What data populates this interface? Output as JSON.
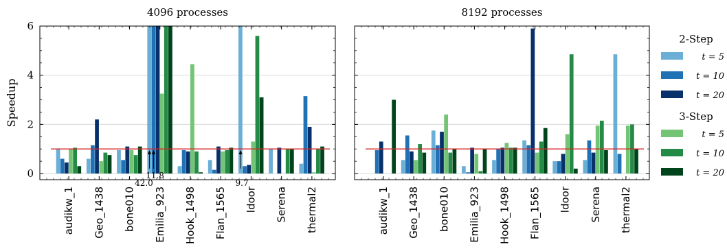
{
  "chart_data": {
    "type": "bar",
    "ylabel": "Speedup",
    "ylim": [
      -0.25,
      6
    ],
    "yticks": [
      0,
      2,
      4,
      6
    ],
    "grid": true,
    "baseline": 1.0,
    "baseline_color": "#d62728",
    "categories": [
      "audikw_1",
      "Geo_1438",
      "bone010",
      "Emilia_923",
      "Hook_1498",
      "Flan_1565",
      "ldoor",
      "Serena",
      "thermal2"
    ],
    "legend": {
      "placement": "right",
      "groups": [
        {
          "title": "2-Step",
          "entries": [
            {
              "label": "t = 5",
              "color": "#6baed6"
            },
            {
              "label": "t = 10",
              "color": "#2171b5"
            },
            {
              "label": "t = 20",
              "color": "#08306b"
            }
          ]
        },
        {
          "title": "3-Step",
          "entries": [
            {
              "label": "t = 5",
              "color": "#74c476"
            },
            {
              "label": "t = 10",
              "color": "#238b45"
            },
            {
              "label": "t = 20",
              "color": "#00441b"
            }
          ]
        }
      ]
    },
    "panels": [
      {
        "title": "4096 processes",
        "series": [
          {
            "name": "2-Step t = 5",
            "values": [
              1.0,
              0.6,
              0.95,
              6.0,
              0.3,
              0.55,
              6.0,
              1.0,
              0.4
            ]
          },
          {
            "name": "2-Step t = 10",
            "values": [
              0.6,
              1.15,
              0.55,
              6.0,
              0.95,
              0.15,
              0.3,
              0.0,
              3.15
            ]
          },
          {
            "name": "2-Step t = 20",
            "values": [
              0.45,
              2.2,
              1.1,
              6.0,
              0.9,
              1.1,
              0.35,
              1.05,
              1.9
            ]
          },
          {
            "name": "3-Step t = 5",
            "values": [
              1.0,
              0.5,
              0.95,
              3.25,
              4.45,
              0.9,
              1.3,
              0.0,
              0.05
            ]
          },
          {
            "name": "3-Step t = 10",
            "values": [
              1.05,
              0.85,
              0.75,
              6.0,
              0.9,
              0.95,
              5.6,
              1.0,
              1.0
            ]
          },
          {
            "name": "3-Step t = 20",
            "values": [
              0.3,
              0.75,
              1.1,
              6.0,
              0.05,
              1.05,
              3.1,
              1.0,
              1.1
            ]
          }
        ],
        "annotations": [
          {
            "text": "42.0",
            "category": "Emilia_923",
            "series": "2-Step t = 5"
          },
          {
            "text": "11.8",
            "category": "Emilia_923",
            "series": "2-Step t = 10"
          },
          {
            "text": "9.7",
            "category": "ldoor",
            "series": "2-Step t = 5"
          }
        ]
      },
      {
        "title": "8192 processes",
        "series": [
          {
            "name": "2-Step t = 5",
            "values": [
              0.0,
              0.55,
              1.75,
              0.3,
              0.55,
              1.35,
              0.5,
              0.55,
              4.85
            ]
          },
          {
            "name": "2-Step t = 10",
            "values": [
              0.95,
              1.55,
              1.15,
              0.05,
              1.0,
              1.15,
              0.5,
              1.35,
              0.8
            ]
          },
          {
            "name": "2-Step t = 20",
            "values": [
              1.3,
              0.9,
              1.7,
              1.05,
              1.05,
              5.9,
              0.8,
              0.85,
              0.0
            ]
          },
          {
            "name": "3-Step t = 5",
            "values": [
              0.0,
              0.55,
              2.4,
              0.8,
              1.25,
              0.85,
              1.6,
              1.95,
              1.95
            ]
          },
          {
            "name": "3-Step t = 10",
            "values": [
              0.0,
              1.2,
              0.85,
              0.1,
              1.05,
              1.3,
              4.85,
              2.15,
              2.0
            ]
          },
          {
            "name": "3-Step t = 20",
            "values": [
              3.0,
              0.85,
              1.0,
              1.0,
              1.05,
              1.85,
              0.2,
              0.95,
              1.0
            ]
          }
        ],
        "annotations": []
      }
    ]
  }
}
